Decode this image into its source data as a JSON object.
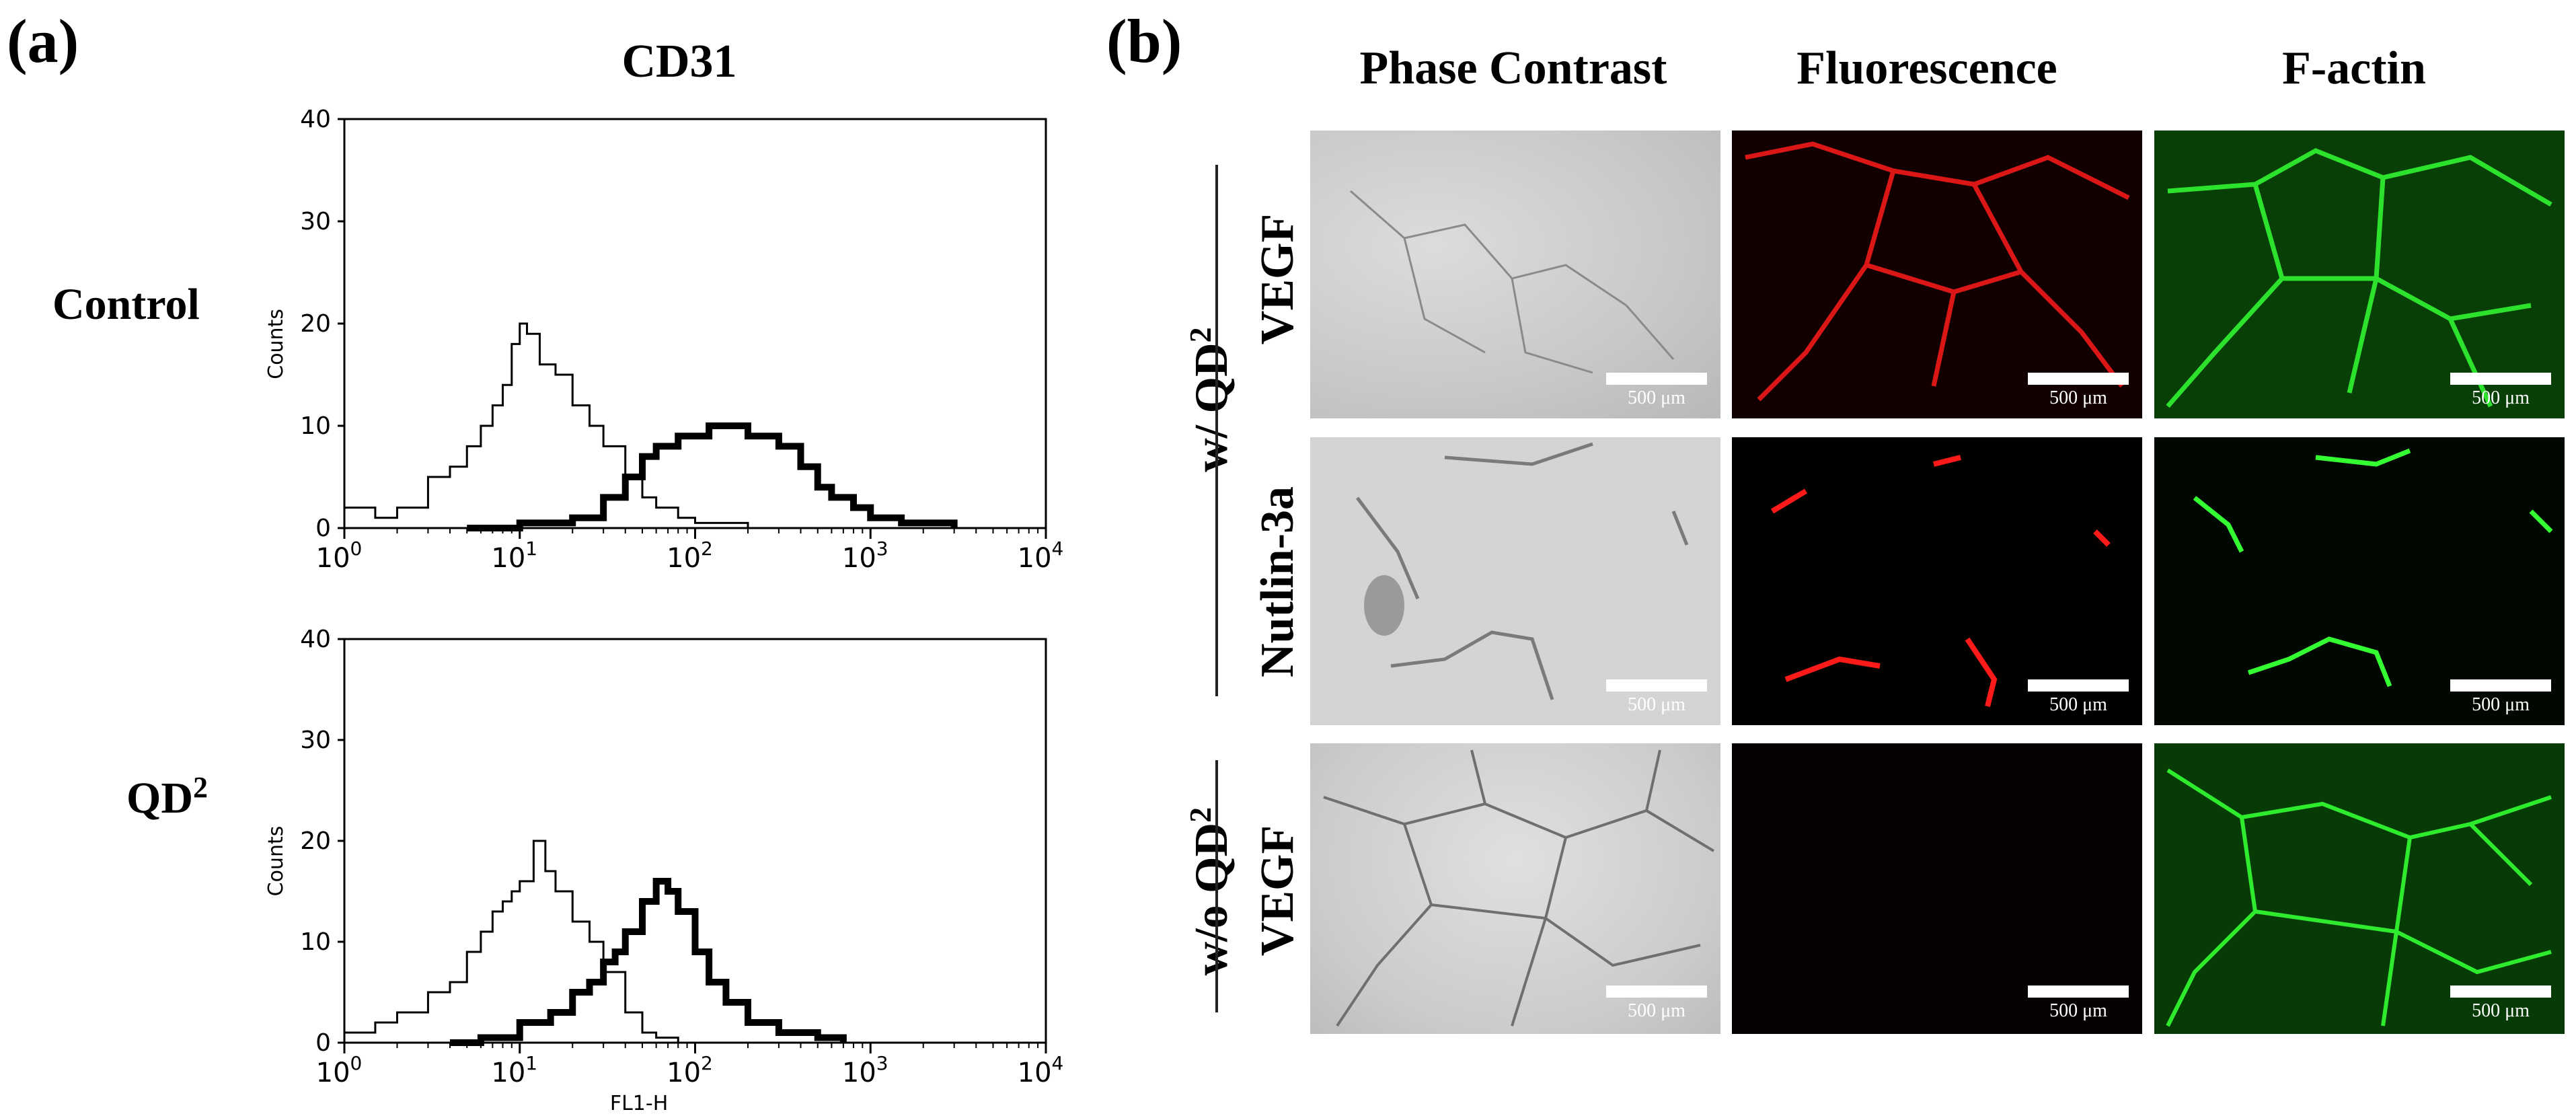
{
  "panel_a": {
    "label": "(a)",
    "title": "CD31",
    "plots": [
      {
        "row_label": "Control",
        "ylabel": "Counts",
        "xlabel": "FL1-H"
      },
      {
        "row_label": "QD",
        "row_label_sup": "2",
        "ylabel": "Counts",
        "xlabel": "FL1-H"
      }
    ]
  },
  "chart_data": [
    {
      "type": "line",
      "title": "CD31",
      "xlabel": "FL1-H",
      "ylabel": "Counts",
      "x_scale": "log",
      "xlim": [
        1,
        10000
      ],
      "ylim": [
        0,
        40
      ],
      "x_ticks": [
        "10^0",
        "10^1",
        "10^2",
        "10^3",
        "10^4"
      ],
      "y_ticks": [
        "0",
        "10",
        "20",
        "30",
        "40"
      ],
      "grid": false,
      "series": [
        {
          "style": "thin",
          "x": [
            1,
            1.5,
            2,
            3,
            4,
            5,
            6,
            7,
            8,
            9,
            10,
            11,
            13,
            16,
            20,
            25,
            30,
            40,
            50,
            60,
            80,
            100,
            200
          ],
          "y": [
            2,
            1,
            2,
            5,
            6,
            8,
            10,
            12,
            14,
            18,
            20,
            19,
            16,
            15,
            12,
            10,
            8,
            5,
            3,
            2,
            1,
            0.5,
            0
          ]
        },
        {
          "style": "thick",
          "x": [
            5,
            10,
            20,
            30,
            40,
            50,
            60,
            80,
            100,
            120,
            150,
            200,
            250,
            300,
            400,
            500,
            600,
            800,
            1000,
            1500,
            2000,
            3000
          ],
          "y": [
            0,
            0.5,
            1,
            3,
            5,
            7,
            8,
            9,
            9,
            10,
            10,
            9,
            9,
            8,
            6,
            4,
            3,
            2,
            1,
            0.5,
            0.5,
            0
          ]
        }
      ]
    },
    {
      "type": "line",
      "xlabel": "FL1-H",
      "ylabel": "Counts",
      "x_scale": "log",
      "xlim": [
        1,
        10000
      ],
      "ylim": [
        0,
        40
      ],
      "x_ticks": [
        "10^0",
        "10^1",
        "10^2",
        "10^3",
        "10^4"
      ],
      "y_ticks": [
        "0",
        "10",
        "20",
        "30",
        "40"
      ],
      "grid": false,
      "series": [
        {
          "style": "thin",
          "x": [
            1,
            1.5,
            2,
            3,
            4,
            5,
            6,
            7,
            8,
            9,
            10,
            12,
            14,
            16,
            20,
            25,
            30,
            40,
            50,
            60,
            80
          ],
          "y": [
            1,
            2,
            3,
            5,
            6,
            9,
            11,
            13,
            14,
            15,
            16,
            20,
            17,
            15,
            12,
            10,
            7,
            3,
            1,
            0.5,
            0
          ]
        },
        {
          "style": "thick",
          "x": [
            4,
            6,
            10,
            15,
            20,
            25,
            30,
            35,
            40,
            50,
            60,
            70,
            80,
            100,
            120,
            150,
            200,
            300,
            500,
            700
          ],
          "y": [
            0,
            0.5,
            2,
            3,
            5,
            6,
            8,
            9,
            11,
            14,
            16,
            15,
            13,
            9,
            6,
            4,
            2,
            1,
            0.5,
            0
          ]
        }
      ]
    }
  ],
  "panel_b": {
    "label": "(b)",
    "columns": [
      "Phase Contrast",
      "Fluorescence",
      "F-actin"
    ],
    "group_labels": [
      {
        "prefix": "w/ QD",
        "sup": "2"
      },
      {
        "prefix": "w/o QD",
        "sup": "2"
      }
    ],
    "row_labels": [
      "VEGF",
      "Nutlin-3a",
      "VEGF"
    ],
    "scale_text": "500 μm",
    "colors": {
      "phase": "#cfcfcf",
      "red": "#ff1010",
      "green": "#22dd22",
      "dark": "#050505"
    }
  }
}
